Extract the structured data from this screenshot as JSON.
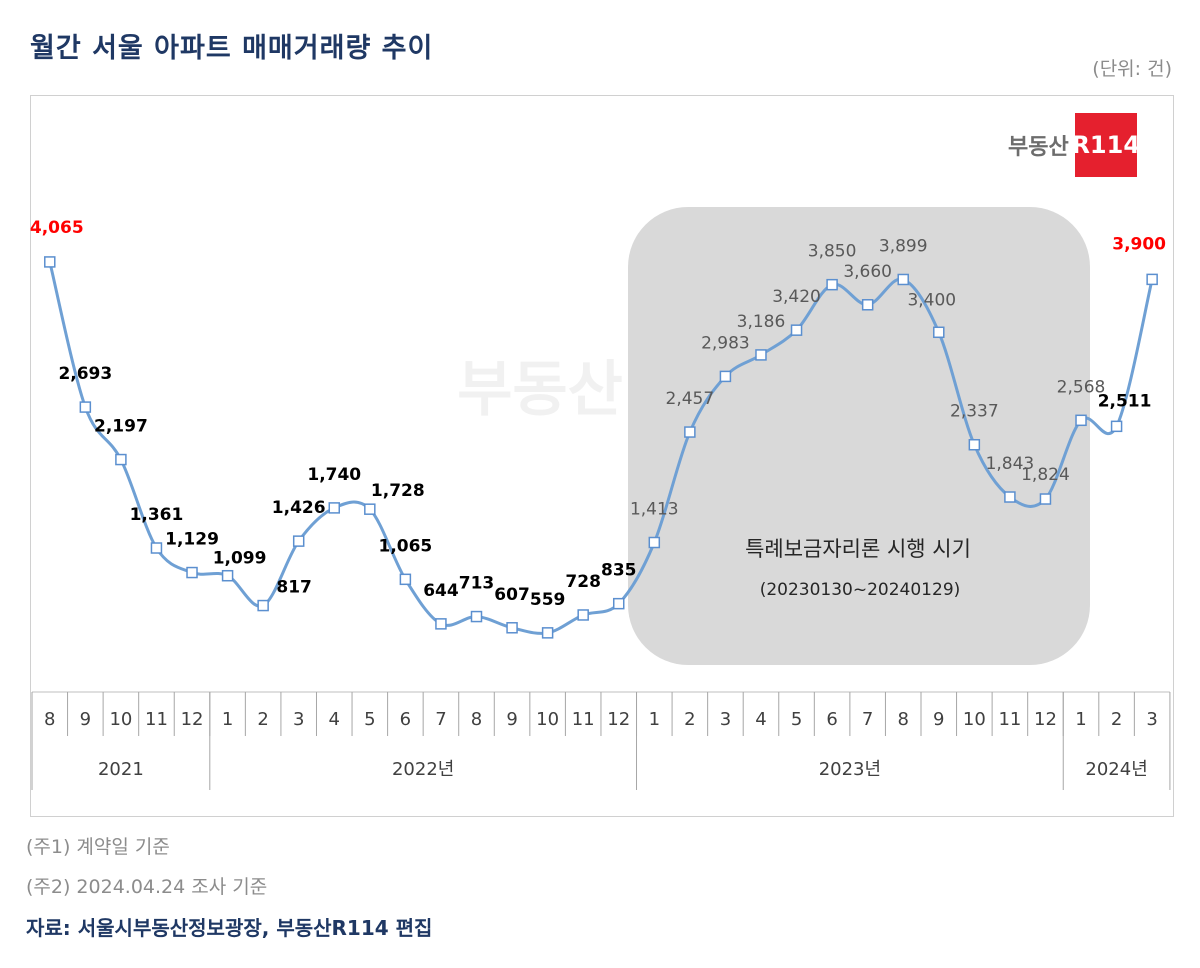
{
  "title": "월간 서울 아파트 매매거래량 추이",
  "unit": "(단위: 건)",
  "logo": {
    "text": "부동산",
    "badge": "R114",
    "color": "#e5202e"
  },
  "notes": [
    "(주1) 계약일 기준",
    "(주2) 2024.04.24 조사 기준"
  ],
  "source": "자료: 서울시부동산정보광장, 부동산R114 편집",
  "chart_data": {
    "type": "line",
    "title": "월간 서울 아파트 매매거래량 추이",
    "ylabel": "",
    "months": [
      "8",
      "9",
      "10",
      "11",
      "12",
      "1",
      "2",
      "3",
      "4",
      "5",
      "6",
      "7",
      "8",
      "9",
      "10",
      "11",
      "12",
      "1",
      "2",
      "3",
      "4",
      "5",
      "6",
      "7",
      "8",
      "9",
      "10",
      "11",
      "12",
      "1",
      "2",
      "3"
    ],
    "years": [
      {
        "label": "2021",
        "span": 5
      },
      {
        "label": "2022년",
        "span": 12
      },
      {
        "label": "2023년",
        "span": 12
      },
      {
        "label": "2024년",
        "span": 3
      }
    ],
    "values": [
      4065,
      2693,
      2197,
      1361,
      1129,
      1099,
      817,
      1426,
      1740,
      1728,
      1065,
      644,
      713,
      607,
      559,
      728,
      835,
      1413,
      2457,
      2983,
      3186,
      3420,
      3850,
      3660,
      3899,
      3400,
      2337,
      1843,
      1824,
      2568,
      2511,
      3900
    ],
    "data_labels": [
      "4,065",
      "2,693",
      "2,197",
      "1,361",
      "1,129",
      "1,099",
      "817",
      "1,426",
      "1,740",
      "1,728",
      "1,065",
      "644",
      "713",
      "607",
      "559",
      "728",
      "835",
      "1,413",
      "2,457",
      "2,983",
      "3,186",
      "3,420",
      "3,850",
      "3,660",
      "3,899",
      "3,400",
      "2,337",
      "1,843",
      "1,824",
      "2,568",
      "2,511",
      "3,900"
    ],
    "highlighted_labels_color": "#ff0000",
    "line_color": "#6fa0d4",
    "annotation": {
      "text": "특례보금자리론 시행 시기",
      "period": "(20230130~20240129)",
      "fill": "#d9d9d9"
    },
    "grid": false,
    "legend": "none"
  }
}
